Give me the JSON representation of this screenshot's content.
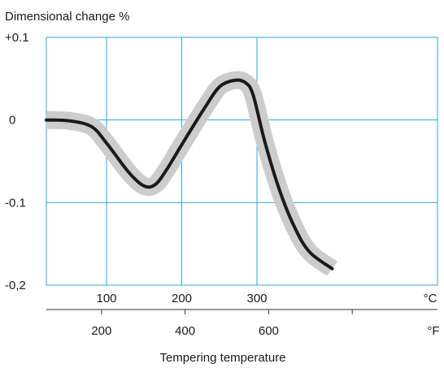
{
  "chart_data": {
    "type": "line",
    "ylabel": "Dimensional change %",
    "xlabel": "Tempering temperature",
    "x_unit_primary": "°C",
    "x_unit_secondary": "°F",
    "xlim": [
      20,
      540
    ],
    "ylim": [
      -0.2,
      0.1
    ],
    "y_ticks": [
      {
        "value": 0.1,
        "label": "+0.1"
      },
      {
        "value": 0,
        "label": "0"
      },
      {
        "value": -0.1,
        "label": "-0.1"
      },
      {
        "value": -0.2,
        "label": "-0,2"
      }
    ],
    "x_ticks_celsius": [
      {
        "value": 100,
        "label": "100"
      },
      {
        "value": 200,
        "label": "200"
      },
      {
        "value": 300,
        "label": "300"
      }
    ],
    "x_ticks_fahrenheit": [
      {
        "value": 200,
        "label": "200"
      },
      {
        "value": 400,
        "label": "400"
      },
      {
        "value": 600,
        "label": "600"
      }
    ],
    "grid": true,
    "band_color": "#cccccc",
    "line_color": "#1a1a1a",
    "grid_color": "#2ca6e0",
    "series": [
      {
        "x": [
          20,
          50,
          80,
          100,
          130,
          150,
          165,
          180,
          200,
          230,
          250,
          270,
          285,
          295,
          310,
          330,
          350,
          370,
          400
        ],
        "y": [
          0.0,
          -0.001,
          -0.008,
          -0.028,
          -0.064,
          -0.08,
          -0.078,
          -0.06,
          -0.03,
          0.014,
          0.04,
          0.048,
          0.045,
          0.03,
          -0.025,
          -0.085,
          -0.13,
          -0.16,
          -0.18
        ]
      }
    ]
  }
}
